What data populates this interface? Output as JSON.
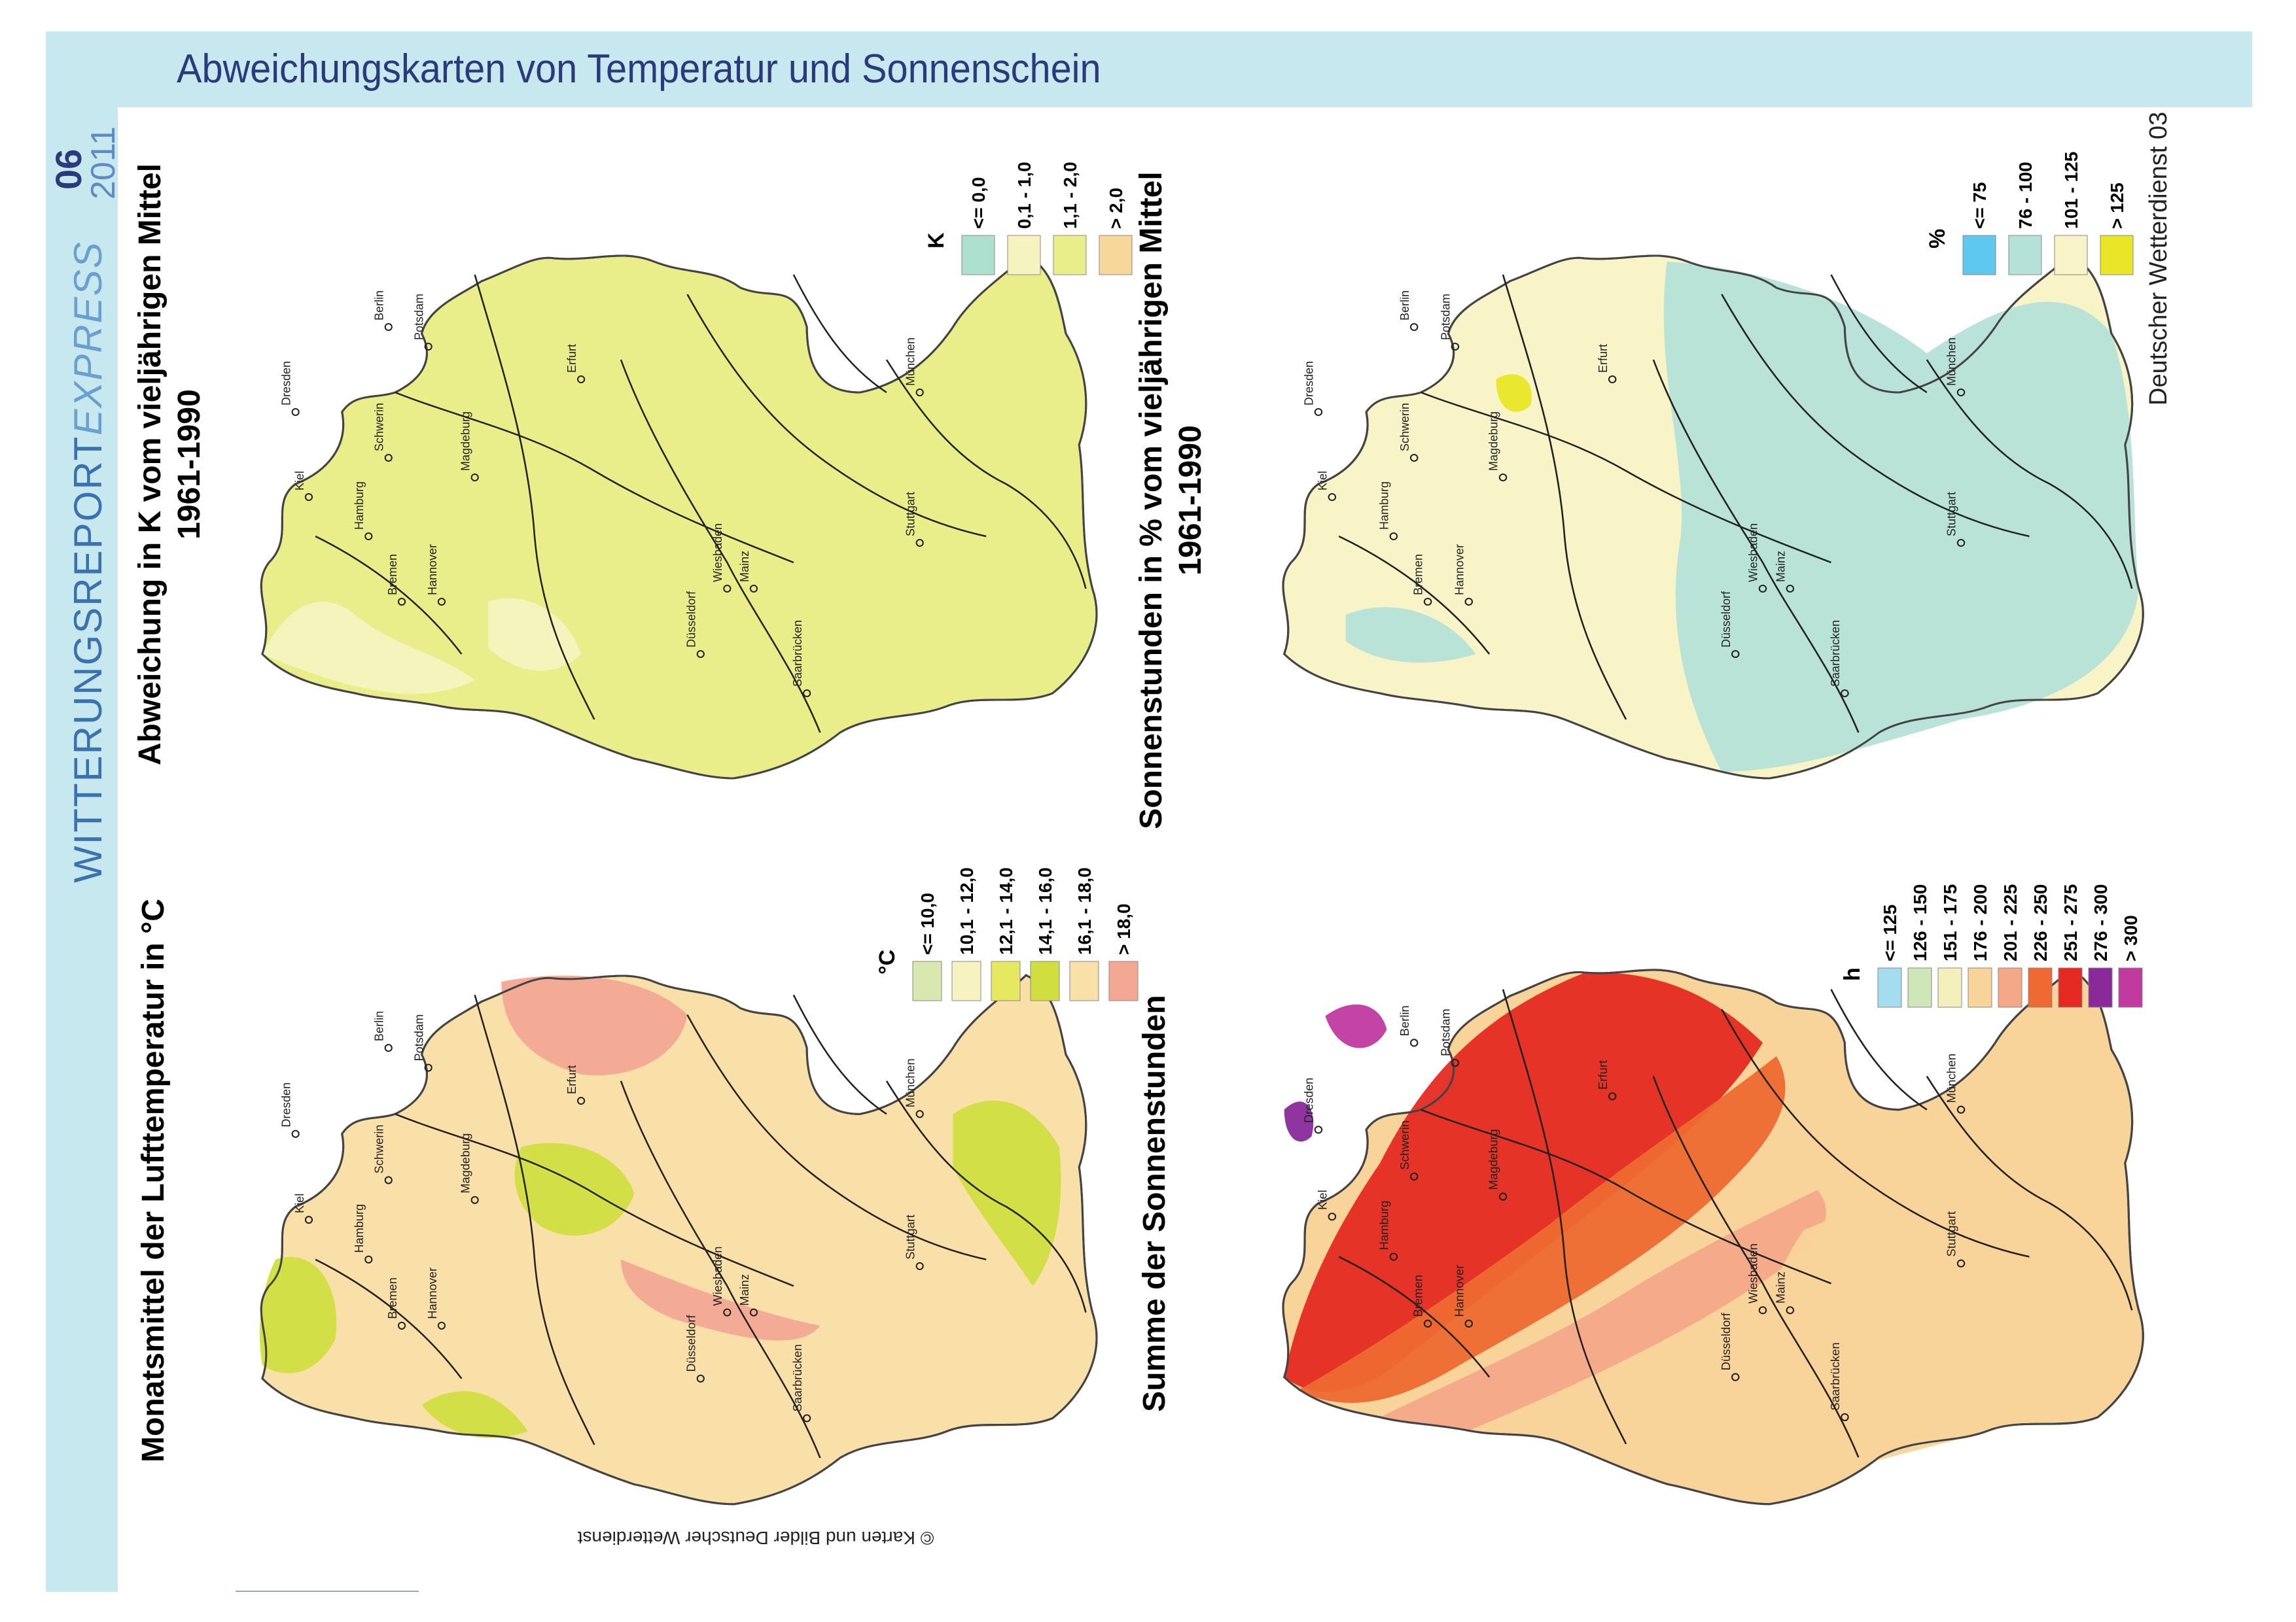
{
  "header": {
    "title": "Abweichungskarten von Temperatur und Sonnenschein"
  },
  "sidebar": {
    "brand_main": "WITTERUNGSREPORT",
    "brand_accent": "EXPRESS",
    "issue_number": "06",
    "issue_year": "2011"
  },
  "publisher": "Deutscher Wetterdienst 03",
  "copyright": "© Karten und Bilder Deutscher Wetterdienst",
  "cities": [
    "Kiel",
    "Hamburg",
    "Schwerin",
    "Bremen",
    "Hannover",
    "Berlin",
    "Potsdam",
    "Magdeburg",
    "Dresden",
    "Erfurt",
    "Düsseldorf",
    "Wiesbaden",
    "Mainz",
    "Saarbrücken",
    "Stuttgart",
    "München"
  ],
  "maps": [
    {
      "title_line1": "Abweichung in K vom vieljährigen Mittel",
      "title_line2": "1961-1990",
      "unit": "K",
      "legend": [
        {
          "label": "<= 0,0",
          "color": "#aee0d0"
        },
        {
          "label": "0,1 - 1,0",
          "color": "#f7f3c0"
        },
        {
          "label": "1,1 - 2,0",
          "color": "#eaee8a"
        },
        {
          "label": "> 2,0",
          "color": "#f8d79a"
        }
      ]
    },
    {
      "title_line1": "Monatsmittel der Lufttemperatur in °C",
      "title_line2": "",
      "unit": "°C",
      "legend": [
        {
          "label": "<= 10,0",
          "color": "#d8e8b0"
        },
        {
          "label": "10,1 - 12,0",
          "color": "#f7f3c0"
        },
        {
          "label": "12,1 - 14,0",
          "color": "#e5e860"
        },
        {
          "label": "14,1 - 16,0",
          "color": "#d0de40"
        },
        {
          "label": "16,1 - 18,0",
          "color": "#f9dfa8"
        },
        {
          "label": "> 18,0",
          "color": "#f3a894"
        }
      ]
    },
    {
      "title_line1": "Sonnenstunden in % vom vieljährigen Mittel",
      "title_line2": "1961-1990",
      "unit": "%",
      "legend": [
        {
          "label": "<= 75",
          "color": "#5ec8ee"
        },
        {
          "label": "76 - 100",
          "color": "#b5e2d8"
        },
        {
          "label": "101 - 125",
          "color": "#f8f4c8"
        },
        {
          "label": "> 125",
          "color": "#e8e626"
        }
      ]
    },
    {
      "title_line1": "Summe der Sonnenstunden",
      "title_line2": "",
      "unit": "h",
      "legend": [
        {
          "label": "<= 125",
          "color": "#a6dcf0"
        },
        {
          "label": "126 - 150",
          "color": "#cfe6b8"
        },
        {
          "label": "151 - 175",
          "color": "#f4f0bc"
        },
        {
          "label": "176 - 200",
          "color": "#f8d49a"
        },
        {
          "label": "201 - 225",
          "color": "#f4a888"
        },
        {
          "label": "226 - 250",
          "color": "#ee6a32"
        },
        {
          "label": "251 - 275",
          "color": "#e42a22"
        },
        {
          "label": "276 - 300",
          "color": "#8a2a9a"
        },
        {
          "label": "> 300",
          "color": "#c03aa0"
        }
      ]
    }
  ]
}
